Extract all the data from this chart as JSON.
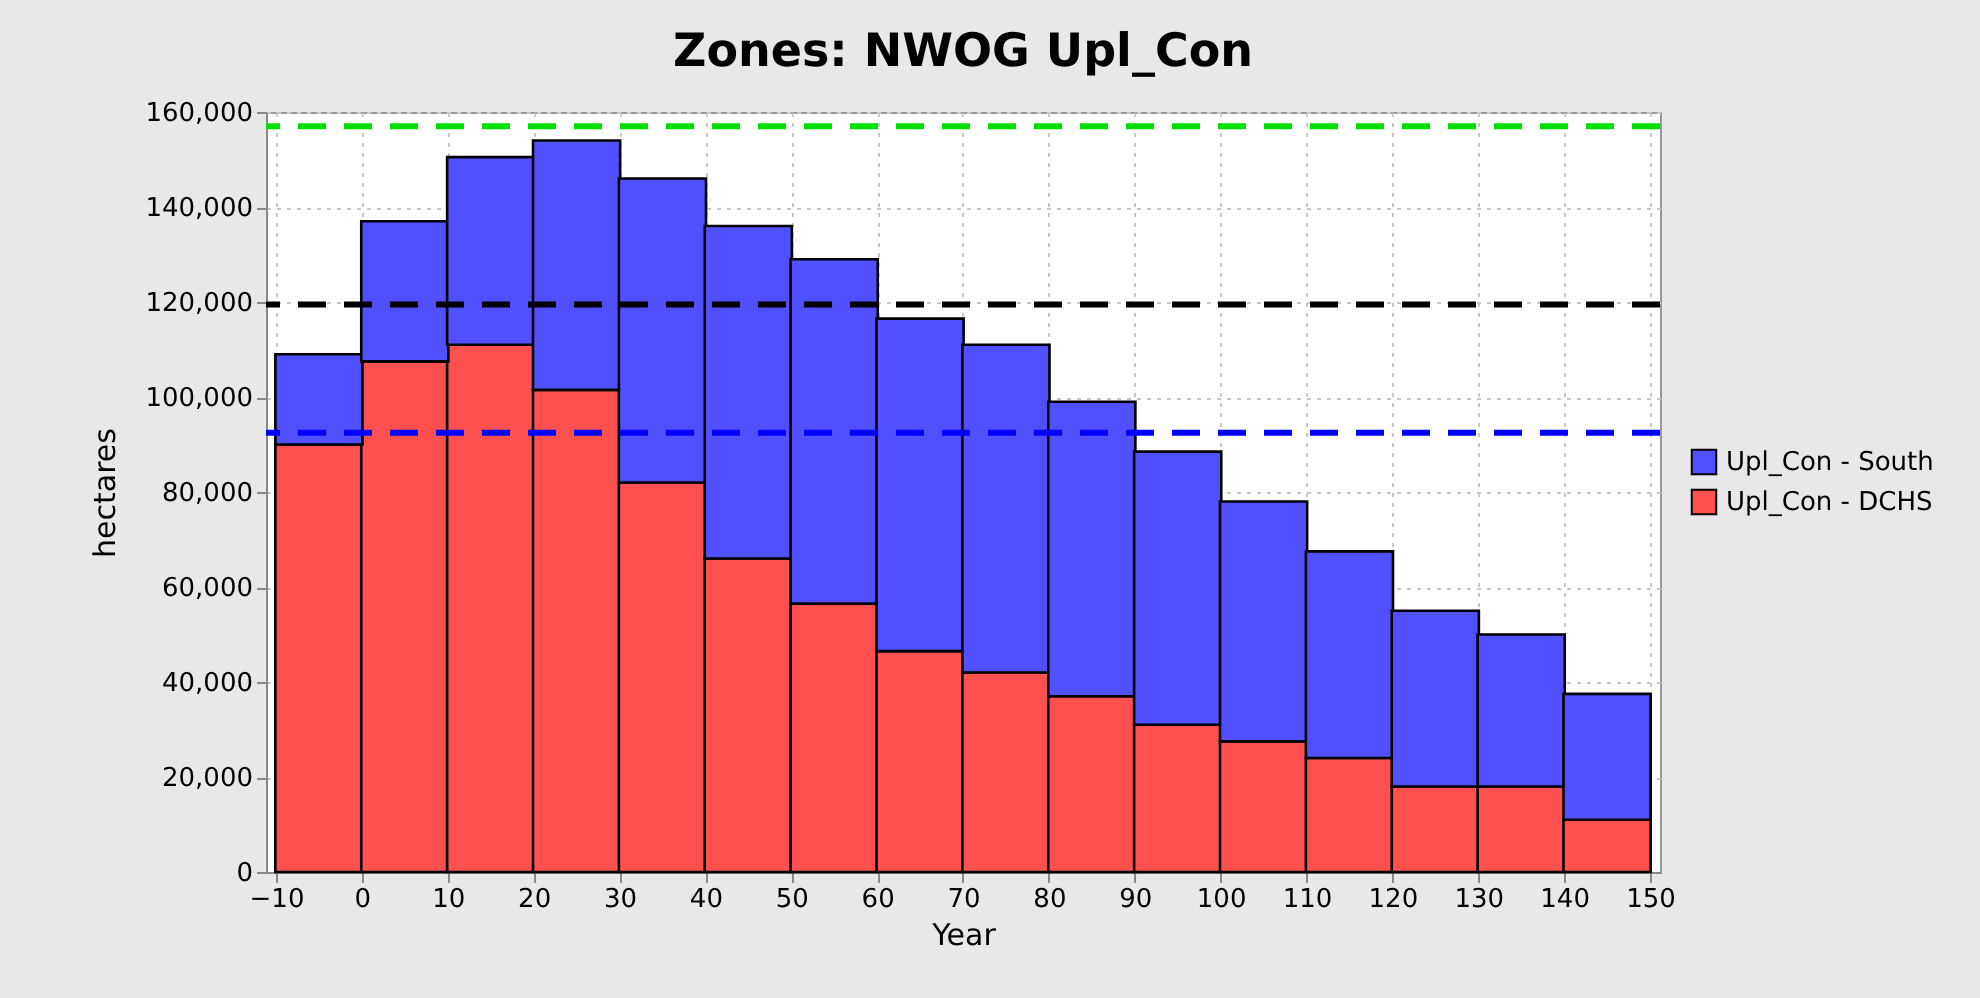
{
  "chart_data": {
    "type": "bar",
    "title": "Zones: NWOG Upl_Con",
    "xlabel": "Year",
    "ylabel": "hectares",
    "x": [
      -5,
      5,
      15,
      25,
      35,
      45,
      55,
      65,
      75,
      85,
      95,
      105,
      115,
      125,
      135,
      145
    ],
    "stacked": true,
    "series": [
      {
        "name": "Upl_Con - DCHS",
        "color": "#ff5050",
        "values": [
          90000,
          107500,
          111000,
          101500,
          82000,
          66000,
          56500,
          46500,
          42000,
          37000,
          31000,
          27500,
          24000,
          18000,
          18000,
          11000
        ]
      },
      {
        "name": "Upl_Con - South",
        "color": "#5050ff",
        "values": [
          19000,
          29500,
          39500,
          52500,
          64000,
          70000,
          72500,
          70000,
          69000,
          62000,
          57500,
          50500,
          43500,
          37000,
          32000,
          26500
        ]
      }
    ],
    "xlim": [
      -10,
      150
    ],
    "xticks": [
      -10,
      0,
      10,
      20,
      30,
      40,
      50,
      60,
      70,
      80,
      90,
      100,
      110,
      120,
      130,
      140,
      150
    ],
    "ylim": [
      0,
      160000
    ],
    "yticks": [
      0,
      {
        "value": 20000,
        "label": "20,000"
      },
      {
        "value": 40000,
        "label": "40,000"
      },
      {
        "value": 60000,
        "label": "60,000"
      },
      {
        "value": 80000,
        "label": "80,000"
      },
      {
        "value": 100000,
        "label": "100,000"
      },
      {
        "value": 120000,
        "label": "120,000"
      },
      {
        "value": 140000,
        "label": "140,000"
      },
      {
        "value": 160000,
        "label": "160,000"
      }
    ],
    "ref_lines": [
      {
        "axis": "y",
        "value": 157000,
        "color": "#00e000",
        "line_style": "dashed"
      },
      {
        "axis": "y",
        "value": 119500,
        "color": "#000000",
        "line_style": "dashed"
      },
      {
        "axis": "y",
        "value": 92500,
        "color": "#0000ff",
        "line_style": "dashed"
      }
    ],
    "grid": true,
    "legend": "right"
  }
}
